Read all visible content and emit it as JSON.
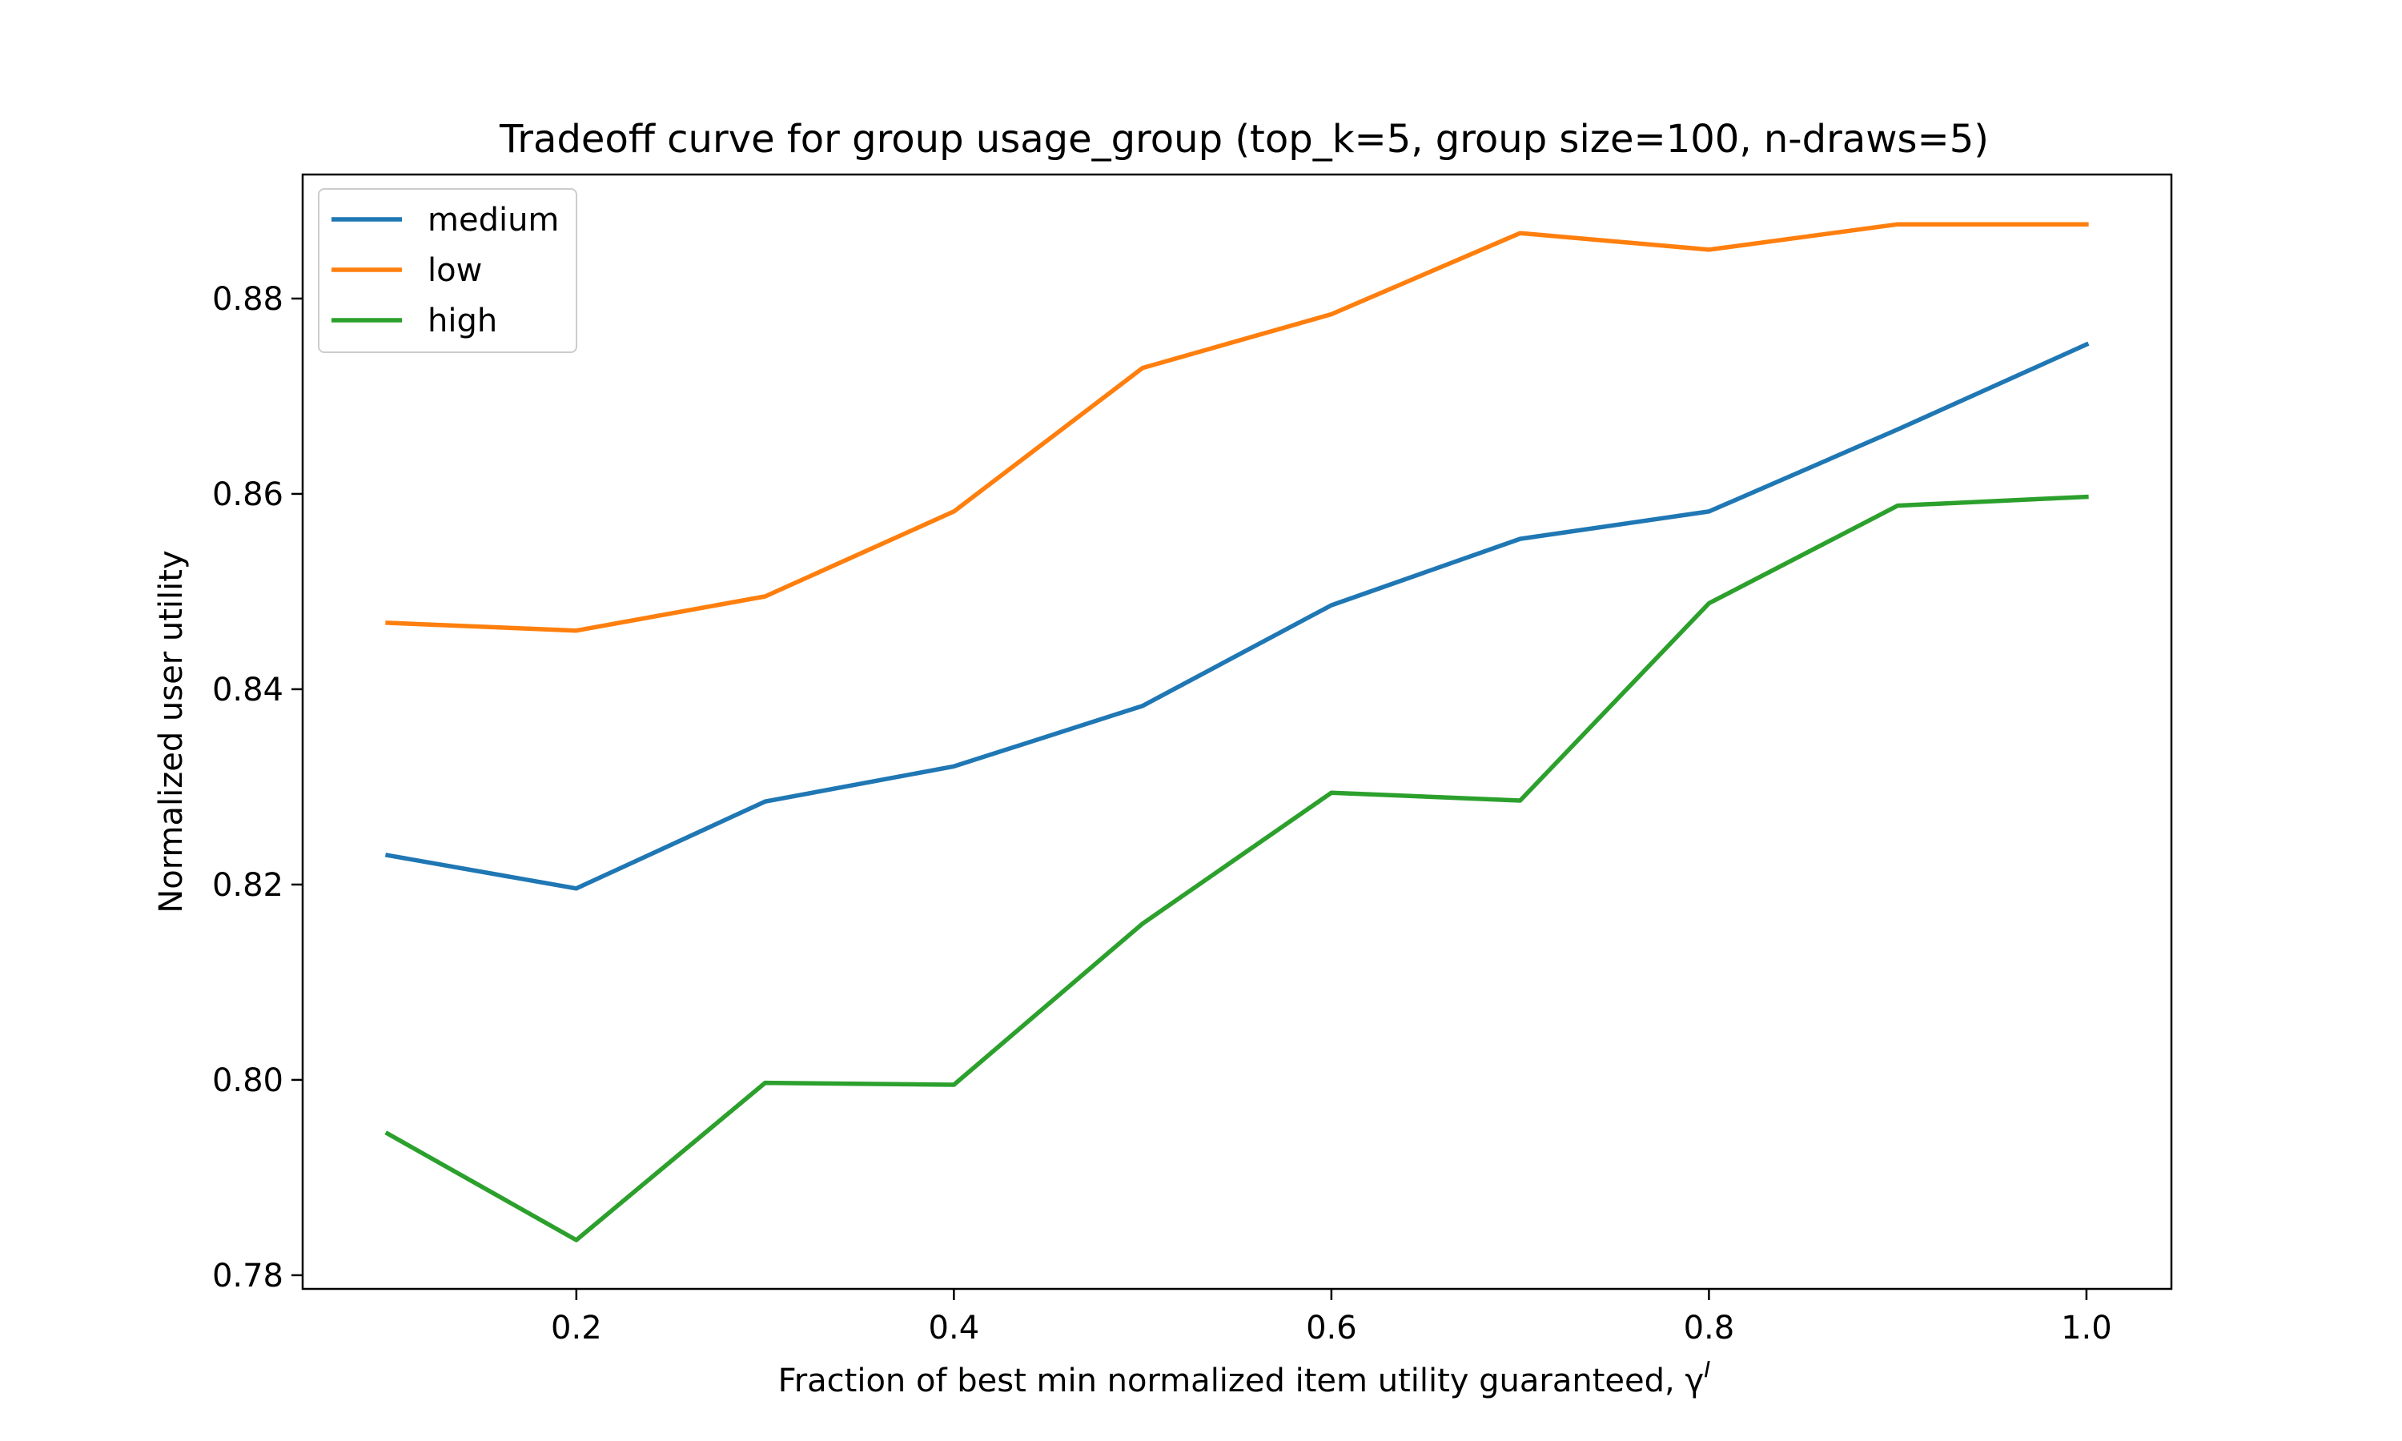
{
  "chart_data": {
    "type": "line",
    "title": "Tradeoff curve for group usage_group (top_k=5, group size=100, n-draws=5)",
    "xlabel": "Fraction of best min normalized item utility guaranteed, γ",
    "xlabel_superscript": "I",
    "ylabel": "Normalized user utility",
    "x": [
      0.1,
      0.2,
      0.3,
      0.4,
      0.5,
      0.6,
      0.7,
      0.8,
      0.9,
      1.0
    ],
    "xlim": [
      0.055,
      1.045
    ],
    "ylim": [
      0.7786,
      0.8927
    ],
    "xticks": [
      0.2,
      0.4,
      0.6,
      0.8,
      1.0
    ],
    "xtick_labels": [
      "0.2",
      "0.4",
      "0.6",
      "0.8",
      "1.0"
    ],
    "yticks": [
      0.78,
      0.8,
      0.82,
      0.84,
      0.86,
      0.88
    ],
    "ytick_labels": [
      "0.78",
      "0.80",
      "0.82",
      "0.84",
      "0.86",
      "0.88"
    ],
    "grid": false,
    "legend_position": "upper-left",
    "series": [
      {
        "name": "medium",
        "color": "#1f77b4",
        "values": [
          0.823,
          0.8196,
          0.8285,
          0.8321,
          0.8383,
          0.8486,
          0.8554,
          0.8582,
          0.8666,
          0.8753
        ]
      },
      {
        "name": "low",
        "color": "#ff7f0e",
        "values": [
          0.8468,
          0.846,
          0.8495,
          0.8582,
          0.8729,
          0.8784,
          0.8867,
          0.885,
          0.8876,
          0.8876
        ]
      },
      {
        "name": "high",
        "color": "#2ca02c",
        "values": [
          0.7945,
          0.7836,
          0.7997,
          0.7995,
          0.816,
          0.8294,
          0.8286,
          0.8488,
          0.8588,
          0.8597
        ]
      }
    ]
  }
}
